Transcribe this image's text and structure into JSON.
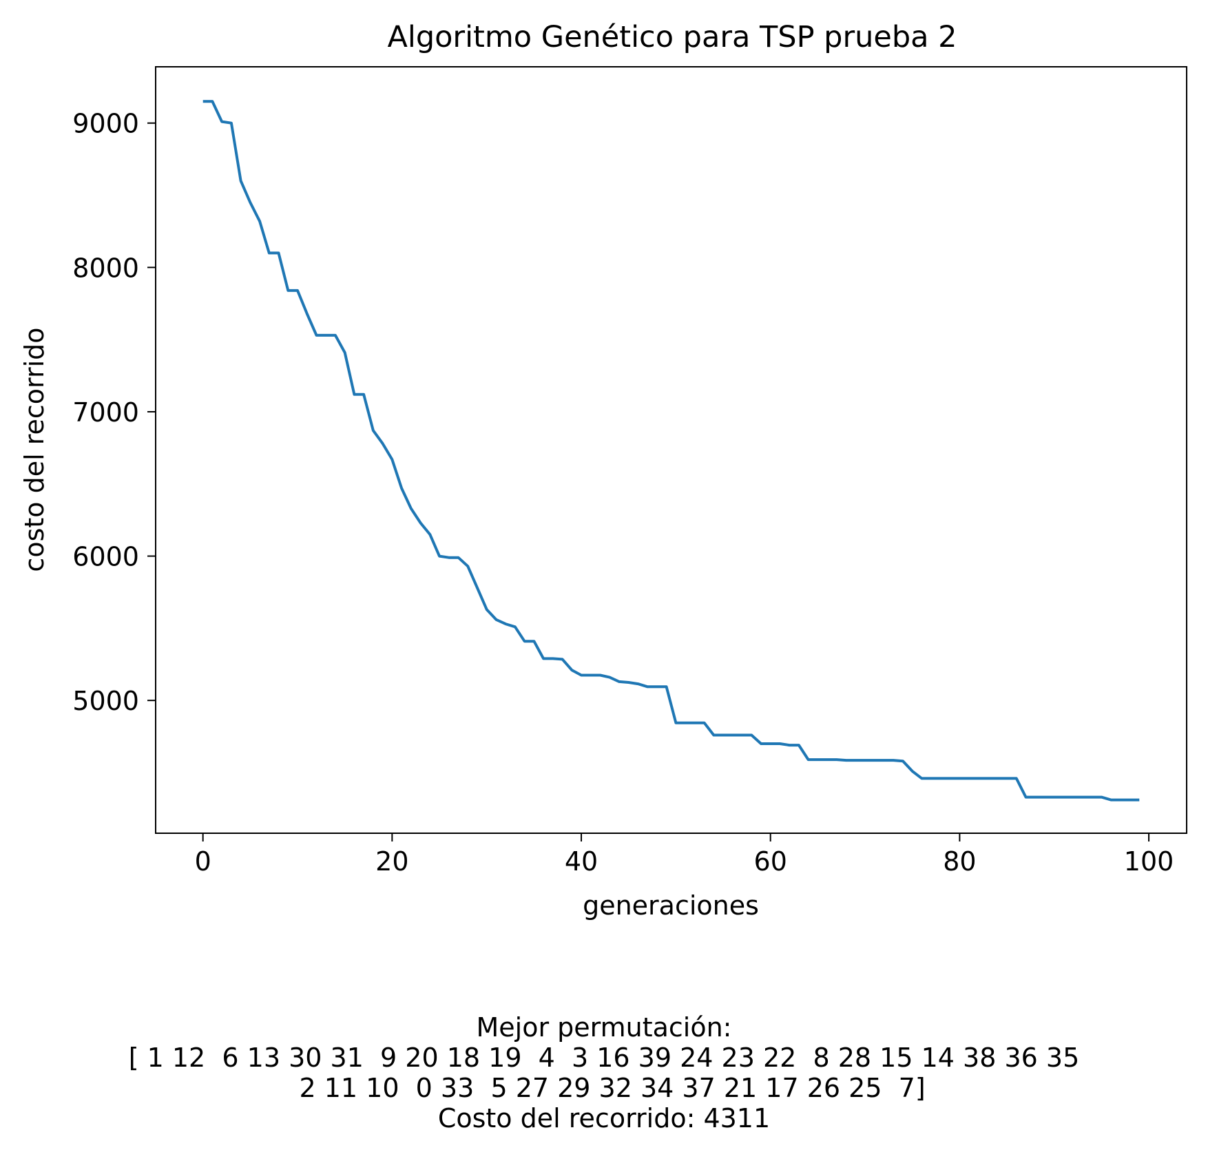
{
  "chart_data": {
    "type": "line",
    "title": "Algoritmo Genético para TSP prueba 2",
    "xlabel": "generaciones",
    "ylabel": "costo del recorrido",
    "xlim": [
      -5,
      104
    ],
    "ylim": [
      4080,
      9390
    ],
    "x_ticks": [
      0,
      20,
      40,
      60,
      80,
      100
    ],
    "y_ticks": [
      5000,
      6000,
      7000,
      8000,
      9000
    ],
    "grid": false,
    "line_color": "#1f77b4",
    "series": [
      {
        "x": [
          0,
          1,
          2,
          3,
          4,
          5,
          6,
          7,
          8,
          9,
          10,
          11,
          12,
          13,
          14,
          15,
          16,
          17,
          18,
          19,
          20,
          21,
          22,
          23,
          24,
          25,
          26,
          27,
          28,
          29,
          30,
          31,
          32,
          33,
          34,
          35,
          36,
          37,
          38,
          39,
          40,
          41,
          42,
          43,
          44,
          45,
          46,
          47,
          48,
          49,
          50,
          51,
          52,
          53,
          54,
          55,
          56,
          57,
          58,
          59,
          60,
          61,
          62,
          63,
          64,
          65,
          66,
          67,
          68,
          69,
          70,
          71,
          72,
          73,
          74,
          75,
          76,
          77,
          78,
          79,
          80,
          81,
          82,
          83,
          84,
          85,
          86,
          87,
          88,
          89,
          90,
          91,
          92,
          93,
          94,
          95,
          96,
          97,
          98,
          99
        ],
        "values": [
          9150,
          9150,
          9010,
          9000,
          8600,
          8450,
          8320,
          8100,
          8100,
          7840,
          7840,
          7680,
          7530,
          7530,
          7530,
          7410,
          7120,
          7120,
          6870,
          6780,
          6670,
          6470,
          6330,
          6230,
          6150,
          6000,
          5990,
          5990,
          5930,
          5780,
          5630,
          5560,
          5530,
          5510,
          5410,
          5410,
          5290,
          5290,
          5285,
          5210,
          5175,
          5175,
          5175,
          5160,
          5130,
          5125,
          5115,
          5095,
          5095,
          5095,
          4845,
          4845,
          4845,
          4845,
          4760,
          4760,
          4760,
          4760,
          4760,
          4700,
          4700,
          4700,
          4690,
          4690,
          4590,
          4590,
          4590,
          4590,
          4585,
          4585,
          4585,
          4585,
          4585,
          4585,
          4580,
          4510,
          4460,
          4460,
          4460,
          4460,
          4460,
          4460,
          4460,
          4460,
          4460,
          4460,
          4460,
          4330,
          4330,
          4330,
          4330,
          4330,
          4330,
          4330,
          4330,
          4330,
          4311,
          4311,
          4311,
          4311
        ]
      }
    ]
  },
  "caption": {
    "line1": "Mejor permutación:",
    "line2": "[ 1 12  6 13 30 31  9 20 18 19  4  3 16 39 24 23 22  8 28 15 14 38 36 35",
    "line3": "  2 11 10  0 33  5 27 29 32 34 37 21 17 26 25  7]",
    "line4": "Costo del recorrido: 4311"
  }
}
